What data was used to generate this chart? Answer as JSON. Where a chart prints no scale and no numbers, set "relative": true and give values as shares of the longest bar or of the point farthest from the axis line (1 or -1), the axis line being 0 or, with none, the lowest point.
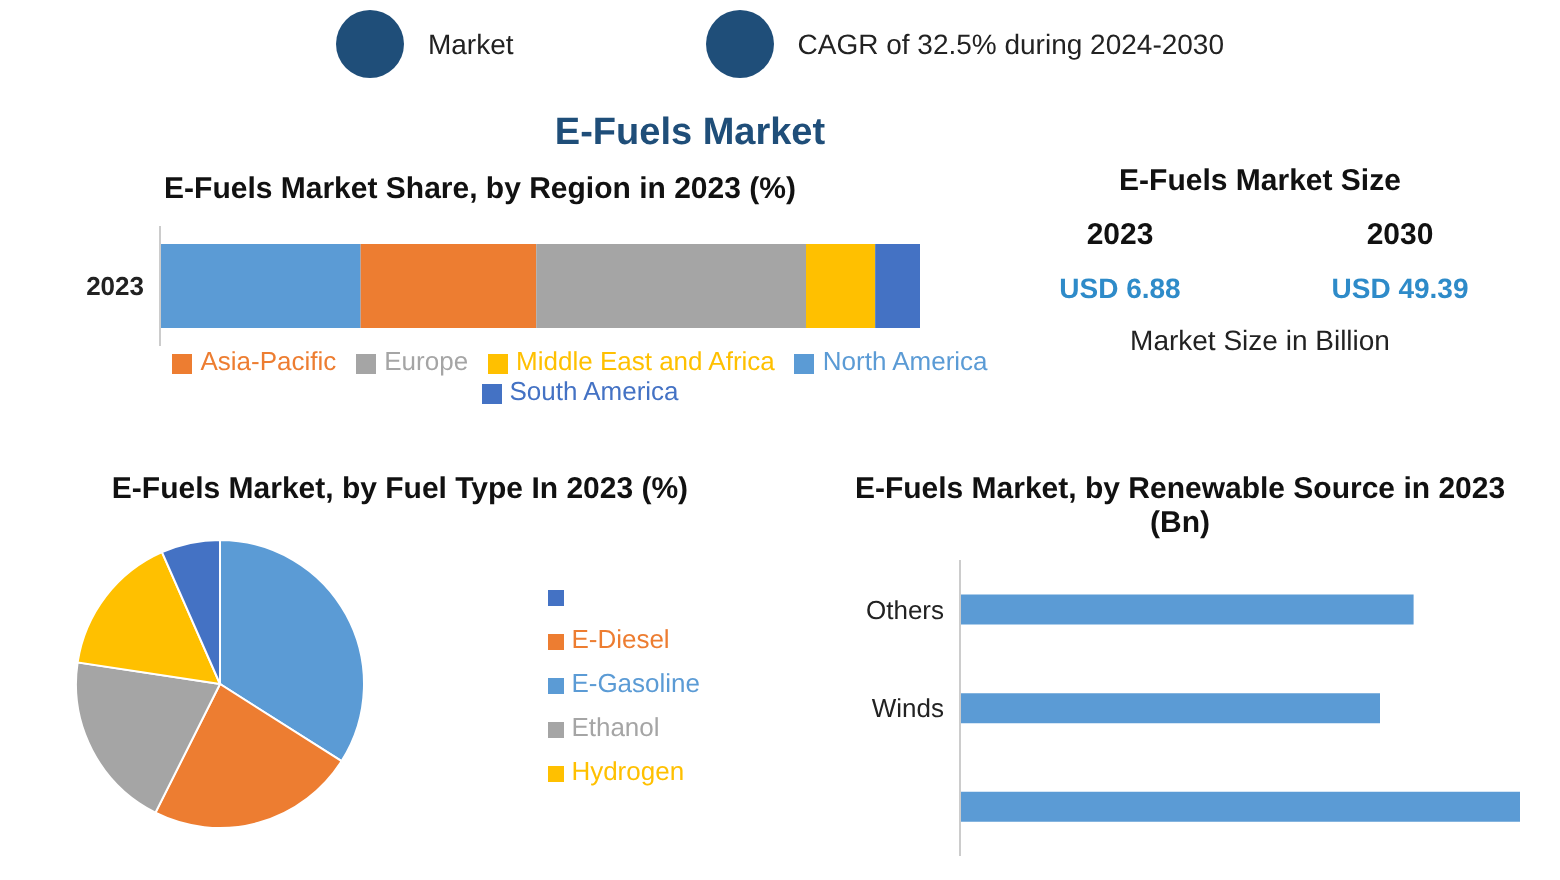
{
  "chart_data": [
    {
      "type": "other",
      "title": "E-Fuels Market",
      "annotations": [
        "Market",
        "CAGR of 32.5% during 2024-2030"
      ]
    },
    {
      "type": "bar",
      "title": "E-Fuels Market Share, by Region in 2023 (%)",
      "orientation": "horizontal",
      "stacked": true,
      "relative": true,
      "categories": [
        "2023"
      ],
      "legend": "bottom",
      "series": [
        {
          "name": "North America",
          "color": "#5b9bd5",
          "values": [
            0.264
          ]
        },
        {
          "name": "Asia-Pacific",
          "color": "#ed7d31",
          "values": [
            0.231
          ]
        },
        {
          "name": "Europe",
          "color": "#a5a5a5",
          "values": [
            0.355
          ]
        },
        {
          "name": "Middle East and Africa",
          "color": "#ffc000",
          "values": [
            0.091
          ]
        },
        {
          "name": "South America",
          "color": "#4472c4",
          "values": [
            0.059
          ]
        }
      ]
    },
    {
      "type": "other",
      "title": "E-Fuels Market Size",
      "annotations": [
        "2023",
        "2030",
        "USD 6.88",
        "USD 49.39",
        "Market Size in Billion"
      ]
    },
    {
      "type": "pie",
      "title": "E-Fuels Market, by Fuel Type In 2023 (%)",
      "categories": [
        "E-Gasoline",
        "E-Diesel",
        "Ethanol",
        "Hydrogen",
        null
      ],
      "values": [
        34,
        23.4,
        20,
        16,
        6.6
      ],
      "colors": [
        "#5b9bd5",
        "#ed7d31",
        "#a5a5a5",
        "#ffc000",
        "#4472c4"
      ],
      "legend": "right"
    },
    {
      "type": "bar",
      "title": "E-Fuels Market, by Renewable Source in 2023 (Bn)",
      "orientation": "horizontal",
      "relative": true,
      "categories": [
        "Others",
        "Winds",
        null
      ],
      "values": [
        0.81,
        0.75,
        1
      ],
      "color": "#5b9bd5"
    }
  ]
}
